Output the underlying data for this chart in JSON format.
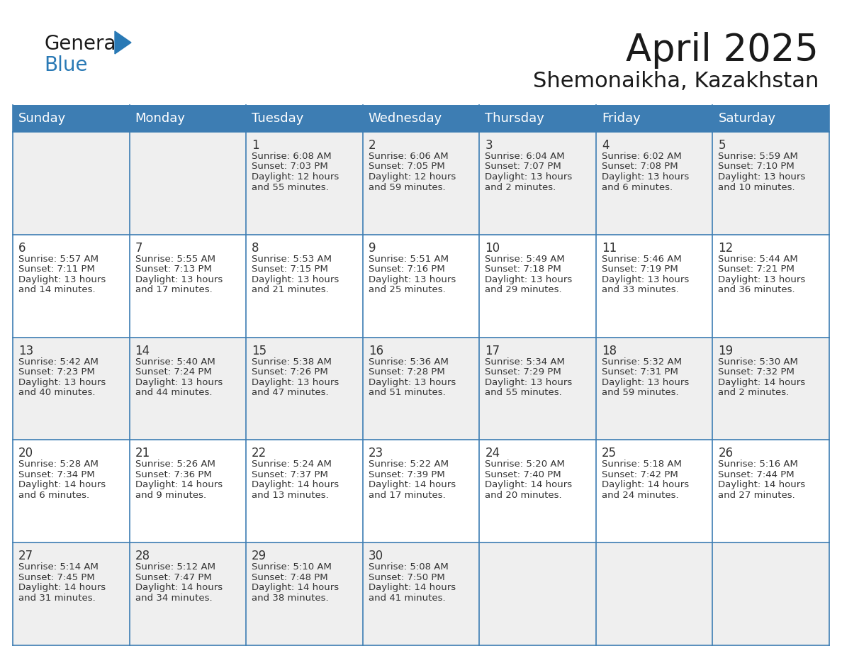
{
  "title": "April 2025",
  "subtitle": "Shemonaikha, Kazakhstan",
  "header_color": "#3D7DB3",
  "header_text_color": "#FFFFFF",
  "row_colors": [
    "#EFEFEF",
    "#FFFFFF",
    "#EFEFEF",
    "#FFFFFF",
    "#EFEFEF"
  ],
  "border_color": "#3D7DB3",
  "text_color": "#333333",
  "days_of_week": [
    "Sunday",
    "Monday",
    "Tuesday",
    "Wednesday",
    "Thursday",
    "Friday",
    "Saturday"
  ],
  "weeks": [
    [
      {
        "day": "",
        "sunrise": "",
        "sunset": "",
        "daylight": ""
      },
      {
        "day": "",
        "sunrise": "",
        "sunset": "",
        "daylight": ""
      },
      {
        "day": "1",
        "sunrise": "6:08 AM",
        "sunset": "7:03 PM",
        "daylight": "12 hours and 55 minutes."
      },
      {
        "day": "2",
        "sunrise": "6:06 AM",
        "sunset": "7:05 PM",
        "daylight": "12 hours and 59 minutes."
      },
      {
        "day": "3",
        "sunrise": "6:04 AM",
        "sunset": "7:07 PM",
        "daylight": "13 hours and 2 minutes."
      },
      {
        "day": "4",
        "sunrise": "6:02 AM",
        "sunset": "7:08 PM",
        "daylight": "13 hours and 6 minutes."
      },
      {
        "day": "5",
        "sunrise": "5:59 AM",
        "sunset": "7:10 PM",
        "daylight": "13 hours and 10 minutes."
      }
    ],
    [
      {
        "day": "6",
        "sunrise": "5:57 AM",
        "sunset": "7:11 PM",
        "daylight": "13 hours and 14 minutes."
      },
      {
        "day": "7",
        "sunrise": "5:55 AM",
        "sunset": "7:13 PM",
        "daylight": "13 hours and 17 minutes."
      },
      {
        "day": "8",
        "sunrise": "5:53 AM",
        "sunset": "7:15 PM",
        "daylight": "13 hours and 21 minutes."
      },
      {
        "day": "9",
        "sunrise": "5:51 AM",
        "sunset": "7:16 PM",
        "daylight": "13 hours and 25 minutes."
      },
      {
        "day": "10",
        "sunrise": "5:49 AM",
        "sunset": "7:18 PM",
        "daylight": "13 hours and 29 minutes."
      },
      {
        "day": "11",
        "sunrise": "5:46 AM",
        "sunset": "7:19 PM",
        "daylight": "13 hours and 33 minutes."
      },
      {
        "day": "12",
        "sunrise": "5:44 AM",
        "sunset": "7:21 PM",
        "daylight": "13 hours and 36 minutes."
      }
    ],
    [
      {
        "day": "13",
        "sunrise": "5:42 AM",
        "sunset": "7:23 PM",
        "daylight": "13 hours and 40 minutes."
      },
      {
        "day": "14",
        "sunrise": "5:40 AM",
        "sunset": "7:24 PM",
        "daylight": "13 hours and 44 minutes."
      },
      {
        "day": "15",
        "sunrise": "5:38 AM",
        "sunset": "7:26 PM",
        "daylight": "13 hours and 47 minutes."
      },
      {
        "day": "16",
        "sunrise": "5:36 AM",
        "sunset": "7:28 PM",
        "daylight": "13 hours and 51 minutes."
      },
      {
        "day": "17",
        "sunrise": "5:34 AM",
        "sunset": "7:29 PM",
        "daylight": "13 hours and 55 minutes."
      },
      {
        "day": "18",
        "sunrise": "5:32 AM",
        "sunset": "7:31 PM",
        "daylight": "13 hours and 59 minutes."
      },
      {
        "day": "19",
        "sunrise": "5:30 AM",
        "sunset": "7:32 PM",
        "daylight": "14 hours and 2 minutes."
      }
    ],
    [
      {
        "day": "20",
        "sunrise": "5:28 AM",
        "sunset": "7:34 PM",
        "daylight": "14 hours and 6 minutes."
      },
      {
        "day": "21",
        "sunrise": "5:26 AM",
        "sunset": "7:36 PM",
        "daylight": "14 hours and 9 minutes."
      },
      {
        "day": "22",
        "sunrise": "5:24 AM",
        "sunset": "7:37 PM",
        "daylight": "14 hours and 13 minutes."
      },
      {
        "day": "23",
        "sunrise": "5:22 AM",
        "sunset": "7:39 PM",
        "daylight": "14 hours and 17 minutes."
      },
      {
        "day": "24",
        "sunrise": "5:20 AM",
        "sunset": "7:40 PM",
        "daylight": "14 hours and 20 minutes."
      },
      {
        "day": "25",
        "sunrise": "5:18 AM",
        "sunset": "7:42 PM",
        "daylight": "14 hours and 24 minutes."
      },
      {
        "day": "26",
        "sunrise": "5:16 AM",
        "sunset": "7:44 PM",
        "daylight": "14 hours and 27 minutes."
      }
    ],
    [
      {
        "day": "27",
        "sunrise": "5:14 AM",
        "sunset": "7:45 PM",
        "daylight": "14 hours and 31 minutes."
      },
      {
        "day": "28",
        "sunrise": "5:12 AM",
        "sunset": "7:47 PM",
        "daylight": "14 hours and 34 minutes."
      },
      {
        "day": "29",
        "sunrise": "5:10 AM",
        "sunset": "7:48 PM",
        "daylight": "14 hours and 38 minutes."
      },
      {
        "day": "30",
        "sunrise": "5:08 AM",
        "sunset": "7:50 PM",
        "daylight": "14 hours and 41 minutes."
      },
      {
        "day": "",
        "sunrise": "",
        "sunset": "",
        "daylight": ""
      },
      {
        "day": "",
        "sunrise": "",
        "sunset": "",
        "daylight": ""
      },
      {
        "day": "",
        "sunrise": "",
        "sunset": "",
        "daylight": ""
      }
    ]
  ],
  "title_fontsize": 38,
  "subtitle_fontsize": 22,
  "header_fontsize": 13,
  "day_num_fontsize": 12,
  "cell_text_fontsize": 9.5
}
